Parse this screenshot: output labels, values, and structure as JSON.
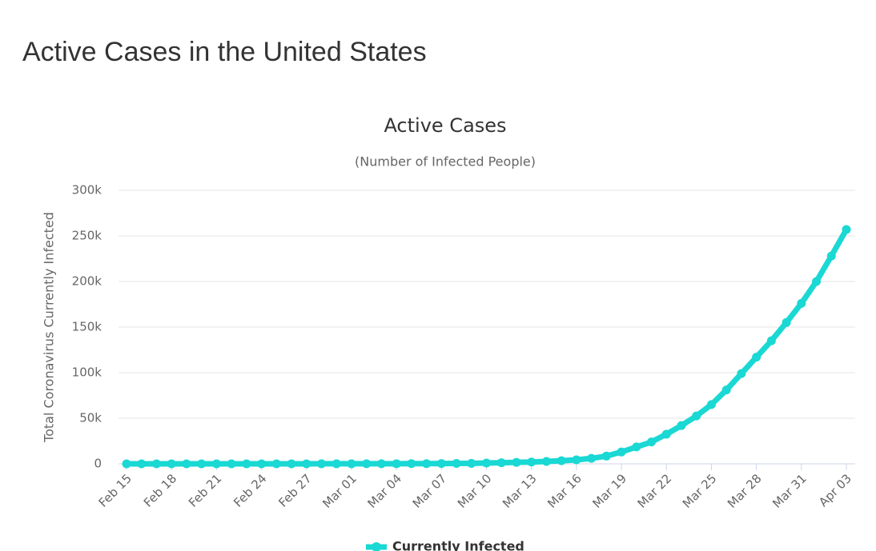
{
  "page_title": "Active Cases in the United States",
  "chart_data": {
    "type": "line",
    "title": "Active Cases",
    "subtitle": "(Number of Infected People)",
    "y_label": "Total Coronavirus Currently Infected",
    "categories": [
      "Feb 15",
      null,
      null,
      "Feb 18",
      null,
      null,
      "Feb 21",
      null,
      null,
      "Feb 24",
      null,
      null,
      "Feb 27",
      null,
      null,
      "Mar 01",
      null,
      null,
      "Mar 04",
      null,
      null,
      "Mar 07",
      null,
      null,
      "Mar 10",
      null,
      null,
      "Mar 13",
      null,
      null,
      "Mar 16",
      null,
      null,
      "Mar 19",
      null,
      null,
      "Mar 22",
      null,
      null,
      "Mar 25",
      null,
      null,
      "Mar 28",
      null,
      null,
      "Mar 31",
      null,
      null,
      "Apr 03"
    ],
    "series": [
      {
        "name": "Currently Infected",
        "color": "#1ad8d3",
        "values": [
          12,
          12,
          12,
          12,
          12,
          12,
          12,
          12,
          12,
          12,
          50,
          50,
          50,
          55,
          60,
          60,
          80,
          110,
          140,
          180,
          240,
          330,
          400,
          500,
          900,
          1200,
          1600,
          2000,
          2600,
          3400,
          4400,
          6000,
          8500,
          13000,
          18500,
          24000,
          32500,
          42000,
          52500,
          65000,
          81000,
          99000,
          117000,
          135000,
          155000,
          176000,
          200000,
          228000,
          257000
        ]
      }
    ],
    "ylim": [
      0,
      300000
    ],
    "yticks": [
      0,
      {
        "value": 50000,
        "label": "50k"
      },
      {
        "value": 100000,
        "label": "100k"
      },
      {
        "value": 150000,
        "label": "150k"
      },
      {
        "value": 200000,
        "label": "200k"
      },
      {
        "value": 250000,
        "label": "250k"
      },
      {
        "value": 300000,
        "label": "300k"
      }
    ],
    "grid": true
  }
}
